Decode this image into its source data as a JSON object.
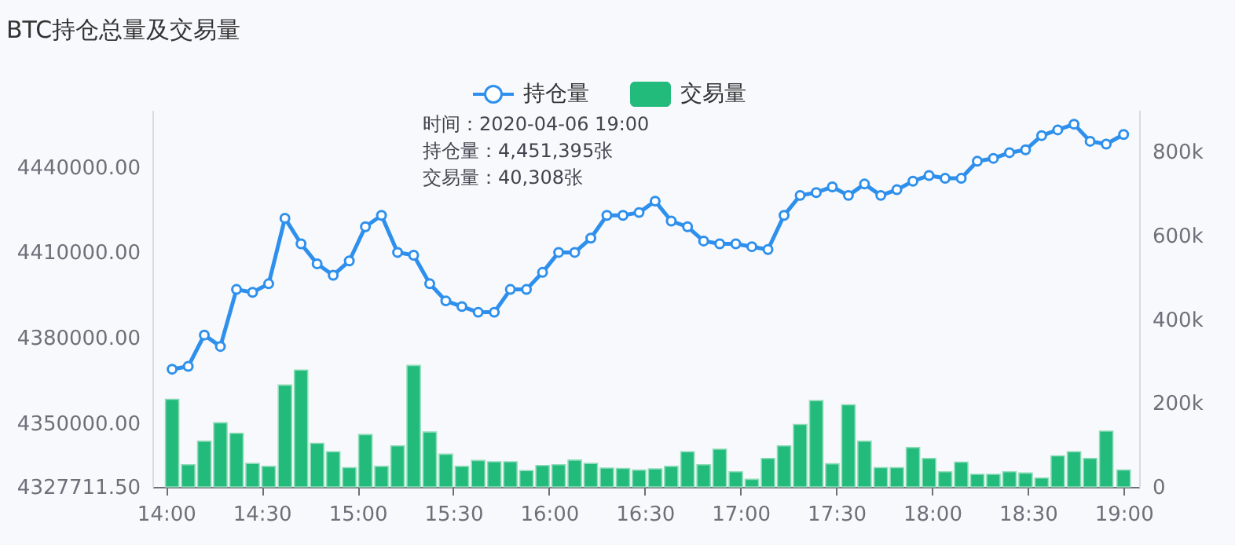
{
  "chart_data": {
    "type": "line",
    "title": "BTC持仓总量及交易量",
    "x": [
      14.032,
      14.116,
      14.2,
      14.284,
      14.368,
      14.452,
      14.536,
      14.621,
      14.705,
      14.789,
      14.873,
      14.957,
      15.041,
      15.125,
      15.209,
      15.293,
      15.377,
      15.461,
      15.545,
      15.63,
      15.714,
      15.798,
      15.882,
      15.966,
      16.05,
      16.134,
      16.218,
      16.302,
      16.386,
      16.47,
      16.554,
      16.638,
      16.723,
      16.807,
      16.891,
      16.975,
      17.059,
      17.143,
      17.227,
      17.311,
      17.395,
      17.479,
      17.563,
      17.647,
      17.732,
      17.816,
      17.9,
      17.984,
      18.068,
      18.152,
      18.236,
      18.32,
      18.404,
      18.488,
      18.572,
      18.656,
      18.741,
      18.825,
      18.909,
      19.0
    ],
    "series": [
      {
        "name": "持仓量",
        "color": "#2e90ec",
        "values": [
          4369000,
          4370000,
          4381000,
          4377000,
          4397000,
          4396000,
          4399000,
          4422000,
          4413000,
          4406000,
          4402000,
          4407000,
          4419000,
          4423000,
          4410000,
          4409000,
          4399000,
          4393000,
          4391000,
          4389000,
          4389000,
          4397000,
          4397000,
          4403000,
          4410000,
          4410000,
          4415000,
          4423000,
          4423000,
          4424000,
          4428000,
          4421000,
          4419000,
          4414000,
          4413000,
          4413000,
          4412000,
          4411000,
          4423000,
          4430000,
          4431000,
          4433000,
          4430000,
          4434000,
          4430000,
          4432000,
          4435000,
          4437000,
          4436000,
          4436000,
          4442000,
          4443000,
          4445000,
          4446000,
          4451000,
          4453000,
          4455000,
          4449000,
          4448000,
          4451395
        ]
      },
      {
        "name": "交易量",
        "type": "bar",
        "axis": "y2",
        "color": "#22bb7c",
        "values": [
          209000,
          53000,
          109000,
          153000,
          128000,
          56000,
          49000,
          243000,
          279000,
          104000,
          84000,
          46000,
          125000,
          49000,
          98000,
          290000,
          131000,
          78000,
          49000,
          63000,
          60000,
          60000,
          39000,
          51000,
          53000,
          64000,
          56000,
          45000,
          44000,
          40000,
          43000,
          49000,
          84000,
          53000,
          90000,
          36000,
          18000,
          68000,
          98000,
          149000,
          206000,
          55000,
          196000,
          109000,
          46000,
          46000,
          94000,
          68000,
          36000,
          59000,
          30000,
          30000,
          36000,
          33000,
          21000,
          74000,
          84000,
          68000,
          133000,
          40308
        ]
      }
    ],
    "xlim": [
      13.97,
      19.04
    ],
    "xticks": [
      {
        "value": 14,
        "label": "14:00"
      },
      {
        "value": 14.5,
        "label": "14:30"
      },
      {
        "value": 15,
        "label": "15:00"
      },
      {
        "value": 15.5,
        "label": "15:30"
      },
      {
        "value": 16,
        "label": "16:00"
      },
      {
        "value": 16.5,
        "label": "16:30"
      },
      {
        "value": 17,
        "label": "17:00"
      },
      {
        "value": 17.5,
        "label": "17:30"
      },
      {
        "value": 18,
        "label": "18:00"
      },
      {
        "value": 18.5,
        "label": "18:30"
      },
      {
        "value": 19,
        "label": "19:00"
      }
    ],
    "ylim": [
      4327711.5,
      4460000
    ],
    "yticks": [
      {
        "value": 4327711.5,
        "label": "4327711.50"
      },
      {
        "value": 4350000,
        "label": "4350000.00"
      },
      {
        "value": 4380000,
        "label": "4380000.00"
      },
      {
        "value": 4410000,
        "label": "4410000.00"
      },
      {
        "value": 4440000,
        "label": "4440000.00"
      }
    ],
    "y2lim": [
      0,
      900000
    ],
    "y2ticks": [
      0,
      {
        "value": 200000,
        "label": "200k"
      },
      {
        "value": 400000,
        "label": "400k"
      },
      {
        "value": 600000,
        "label": "600k"
      },
      {
        "value": 800000,
        "label": "800k"
      }
    ],
    "annotations": [
      "时间：2020-04-06 19:00",
      "持仓量：4,451,395张",
      "交易量：40,308张"
    ],
    "legend": "top",
    "grid": false,
    "marker": "circle"
  }
}
